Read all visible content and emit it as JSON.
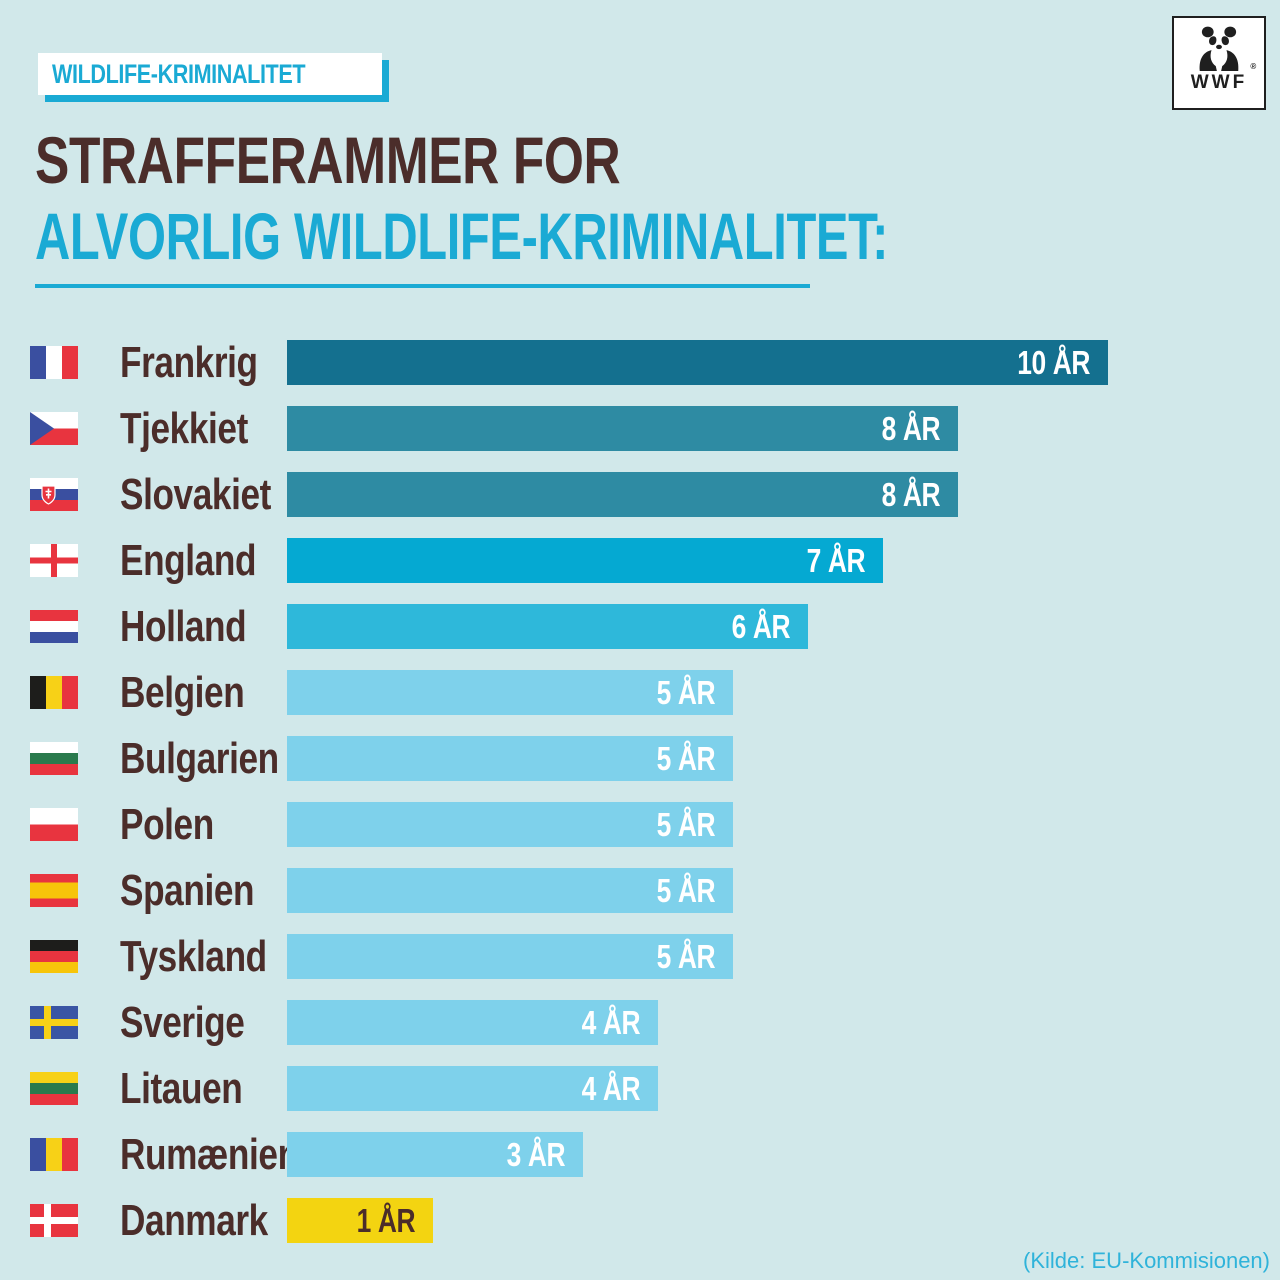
{
  "badge": {
    "label": "WILDLIFE-KRIMINALITET"
  },
  "logo": {
    "text": "WWF",
    "registered": "®"
  },
  "title": {
    "line1": "STRAFFERAMMER FOR",
    "line2": "ALVORLIG WILDLIFE-KRIMINALITET:"
  },
  "source": {
    "text": "(Kilde: EU-Kommisionen)"
  },
  "colors": {
    "background": "#d1e8ea",
    "accent_cyan": "#1aaad4",
    "title_brown": "#4b2d2a",
    "source_cyan": "#2fb3da",
    "denmark_yellow": "#f3d411"
  },
  "chart_data": {
    "type": "bar",
    "orientation": "horizontal",
    "title": "Strafferammer for alvorlig wildlife-kriminalitet",
    "unit": "ÅR",
    "xlim": [
      0,
      10
    ],
    "categories": [
      "Frankrig",
      "Tjekkiet",
      "Slovakiet",
      "England",
      "Holland",
      "Belgien",
      "Bulgarien",
      "Polen",
      "Spanien",
      "Tyskland",
      "Sverige",
      "Litauen",
      "Rumænien",
      "Danmark"
    ],
    "values": [
      10,
      8,
      8,
      7,
      6,
      5,
      5,
      5,
      5,
      5,
      4,
      4,
      3,
      1
    ],
    "rows": [
      {
        "country": "Frankrig",
        "flag": "fr",
        "years": 10,
        "label": "10 ÅR",
        "bar_color": "#14708f",
        "value_color": "#ffffff"
      },
      {
        "country": "Tjekkiet",
        "flag": "cz",
        "years": 8,
        "label": "8 ÅR",
        "bar_color": "#2e8ba3",
        "value_color": "#ffffff"
      },
      {
        "country": "Slovakiet",
        "flag": "sk",
        "years": 8,
        "label": "8 ÅR",
        "bar_color": "#2e8ba3",
        "value_color": "#ffffff"
      },
      {
        "country": "England",
        "flag": "en",
        "years": 7,
        "label": "7 ÅR",
        "bar_color": "#05a9d2",
        "value_color": "#ffffff"
      },
      {
        "country": "Holland",
        "flag": "nl",
        "years": 6,
        "label": "6 ÅR",
        "bar_color": "#2eb8da",
        "value_color": "#ffffff"
      },
      {
        "country": "Belgien",
        "flag": "be",
        "years": 5,
        "label": "5 ÅR",
        "bar_color": "#7ed1eb",
        "value_color": "#ffffff"
      },
      {
        "country": "Bulgarien",
        "flag": "bg",
        "years": 5,
        "label": "5 ÅR",
        "bar_color": "#7ed1eb",
        "value_color": "#ffffff"
      },
      {
        "country": "Polen",
        "flag": "pl",
        "years": 5,
        "label": "5 ÅR",
        "bar_color": "#7ed1eb",
        "value_color": "#ffffff"
      },
      {
        "country": "Spanien",
        "flag": "es",
        "years": 5,
        "label": "5 ÅR",
        "bar_color": "#7ed1eb",
        "value_color": "#ffffff"
      },
      {
        "country": "Tyskland",
        "flag": "de",
        "years": 5,
        "label": "5 ÅR",
        "bar_color": "#7ed1eb",
        "value_color": "#ffffff"
      },
      {
        "country": "Sverige",
        "flag": "se",
        "years": 4,
        "label": "4 ÅR",
        "bar_color": "#7ed1eb",
        "value_color": "#ffffff"
      },
      {
        "country": "Litauen",
        "flag": "lt",
        "years": 4,
        "label": "4 ÅR",
        "bar_color": "#7ed1eb",
        "value_color": "#ffffff"
      },
      {
        "country": "Rumænien",
        "flag": "ro",
        "years": 3,
        "label": "3 ÅR",
        "bar_color": "#7ed1eb",
        "value_color": "#ffffff"
      },
      {
        "country": "Danmark",
        "flag": "dk",
        "years": 1,
        "label": "1 ÅR",
        "bar_color": "#f3d411",
        "value_color": "#4b2d2a"
      }
    ]
  }
}
